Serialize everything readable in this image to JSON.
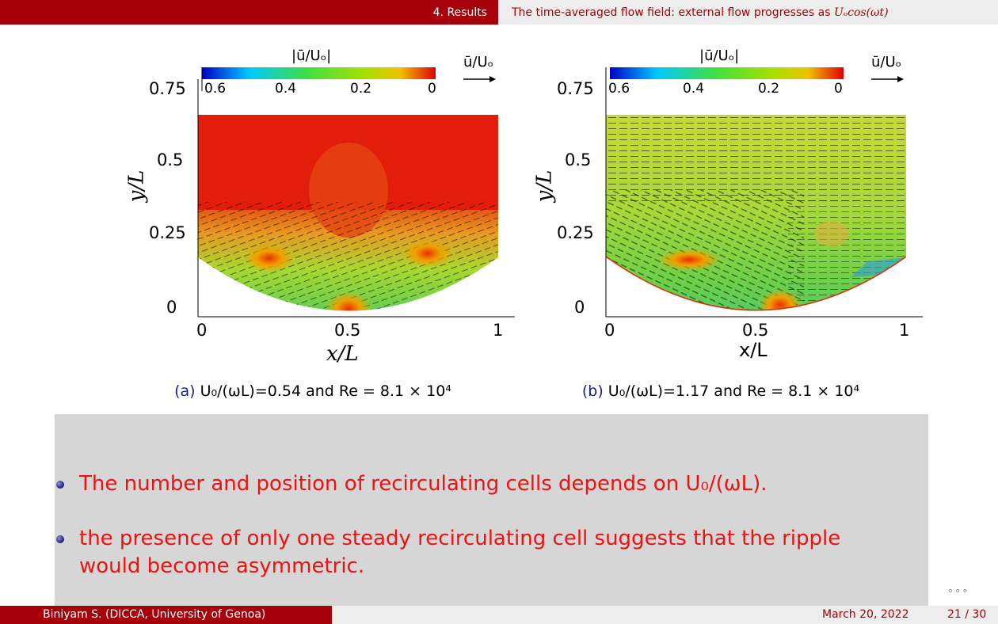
{
  "header": {
    "section": "4. Results",
    "subtitle_text": "The time-averaged flow field: external flow progresses as ",
    "subtitle_math": "Uₒcos(ωt)"
  },
  "figures": [
    {
      "id": "a",
      "colorbar_title": "|ū/Uₒ|",
      "colorbar_ticks": [
        "0.6",
        "0.4",
        "0.2",
        "0"
      ],
      "arrow_label": "ū/Uₒ",
      "y_ticks": [
        "0.75",
        "0.5",
        "0.25",
        "0"
      ],
      "x_ticks": [
        "0",
        "0.5",
        "1"
      ],
      "ylabel": "y/L",
      "xlabel": "x/L",
      "caption_label": "(a)",
      "caption_text": "U₀/(ωL)=0.54 and Re = 8.1 × 10⁴"
    },
    {
      "id": "b",
      "colorbar_title": "|ū/Uₒ|",
      "colorbar_ticks": [
        "0.6",
        "0.4",
        "0.2",
        "0"
      ],
      "arrow_label": "ū/Uₒ",
      "y_ticks": [
        "0.75",
        "0.5",
        "0.25",
        "0"
      ],
      "x_ticks": [
        "0",
        "0.5",
        "1"
      ],
      "ylabel": "y/L",
      "xlabel": "x/L",
      "caption_label": "(b)",
      "caption_text": "U₀/(ωL)=1.17 and Re = 8.1 × 10⁴"
    }
  ],
  "bullets": [
    "The number and position of recirculating cells depends on U₀/(ωL).",
    "the presence of only one steady recirculating cell suggests that the ripple would become asymmetric."
  ],
  "nav": "∘∘∘",
  "footer": {
    "author": "Biniyam S.  (DICCA, University of Genoa)",
    "date": "March 20, 2022",
    "page": "21 / 30"
  },
  "colors": {
    "beamer_red": "#a6000a",
    "bullet_red": "#ee1111",
    "caption_blue": "#1c1c8c",
    "box_gray": "#d6d6d6"
  }
}
